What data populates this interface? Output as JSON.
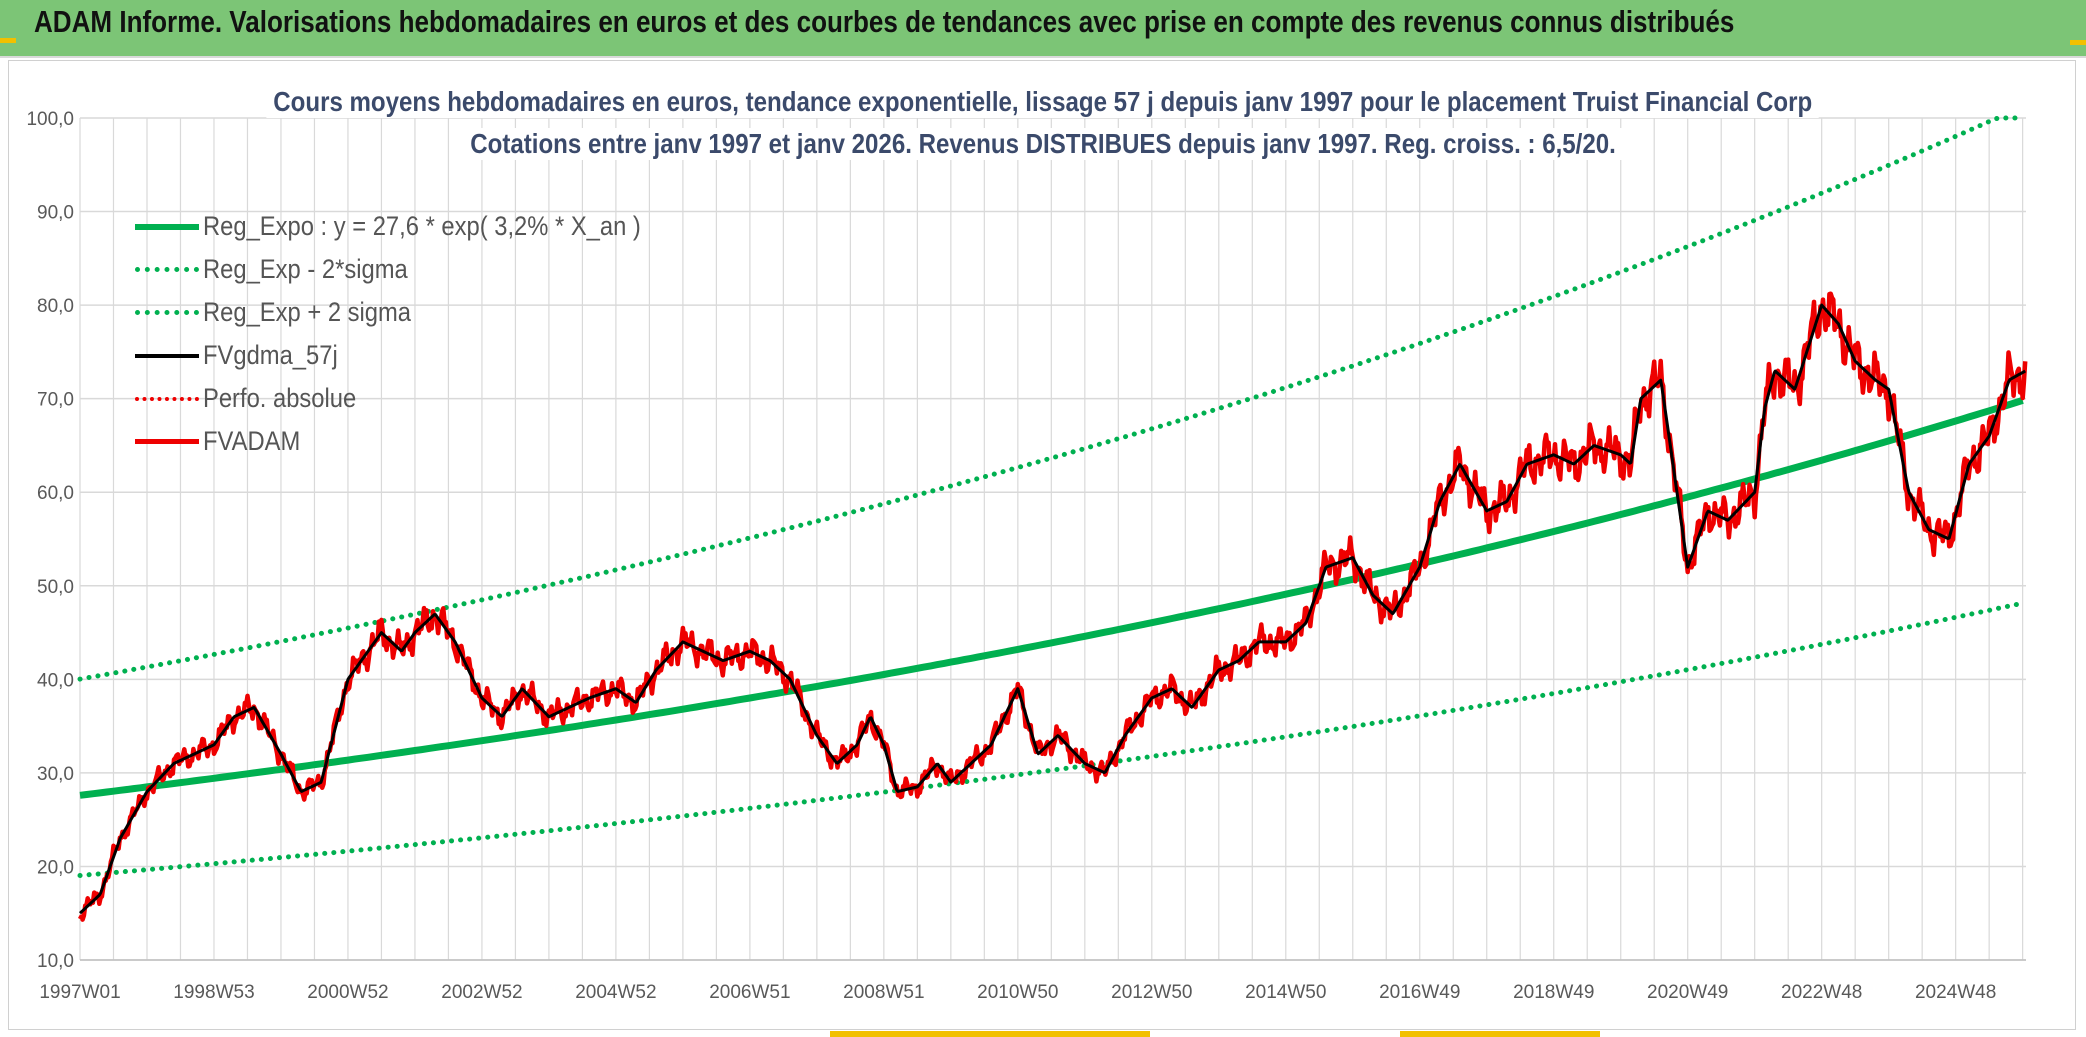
{
  "header": {
    "title": "ADAM Informe. Valorisations hebdomadaires en euros et des courbes de tendances avec prise en compte des revenus connus distribués"
  },
  "colors": {
    "banner": "#7cc576",
    "trend": "#00b050",
    "price": "#ee0000",
    "smooth": "#000000",
    "grid": "#d9d9d9",
    "axis_text": "#595959",
    "title_text": "#3b4a6b"
  },
  "chart_data": {
    "type": "line",
    "title": "Cours moyens hebdomadaires en euros, tendance exponentielle, lissage 57 j depuis janv 1997 pour le placement Truist Financial Corp",
    "subtitle": "Cotations entre janv 1997 et janv 2026. Revenus DISTRIBUES depuis janv 1997. Reg. croiss. : 6,5/20.",
    "xlabel": "",
    "ylabel": "",
    "x_range": [
      1997.0,
      2026.05
    ],
    "ylim": [
      10,
      100
    ],
    "y_ticks": [
      "10,0",
      "20,0",
      "30,0",
      "40,0",
      "50,0",
      "60,0",
      "70,0",
      "80,0",
      "90,0",
      "100,0"
    ],
    "x_tick_labels": [
      "1997W01",
      "1998W53",
      "2000W52",
      "2002W52",
      "2004W52",
      "2006W51",
      "2008W51",
      "2010W50",
      "2012W50",
      "2014W50",
      "2016W49",
      "2018W49",
      "2020W49",
      "2022W48",
      "2024W48"
    ],
    "x_tick_values": [
      1997.0,
      1999.0,
      2001.0,
      2003.0,
      2005.0,
      2007.0,
      2009.0,
      2011.0,
      2013.0,
      2015.0,
      2017.0,
      2019.0,
      2021.0,
      2023.0,
      2025.0
    ],
    "grid": true,
    "legend_position": "top-left",
    "regression": {
      "a": 27.6,
      "rate": 0.032,
      "sigma_factor": 1.45
    },
    "series": [
      {
        "name": "Reg_Expo : y = 27,6 * exp( 3,2% *  X_an )",
        "style": "solid-thick",
        "color": "#00b050"
      },
      {
        "name": "Reg_Exp - 2*sigma",
        "style": "dotted",
        "color": "#00b050"
      },
      {
        "name": "Reg_Exp + 2 sigma",
        "style": "dotted",
        "color": "#00b050"
      },
      {
        "name": "FVgdma_57j",
        "style": "solid",
        "color": "#000000"
      },
      {
        "name": "Perfo. absolue",
        "style": "dotted",
        "color": "#ee0000"
      },
      {
        "name": "FVADAM",
        "style": "solid",
        "color": "#ee0000",
        "x": [
          1997.0,
          1997.3,
          1997.6,
          1998.0,
          1998.4,
          1998.7,
          1999.0,
          1999.3,
          1999.6,
          2000.0,
          2000.3,
          2000.6,
          2001.0,
          2001.3,
          2001.5,
          2001.8,
          2002.0,
          2002.3,
          2002.6,
          2003.0,
          2003.3,
          2003.6,
          2004.0,
          2004.3,
          2004.6,
          2005.0,
          2005.3,
          2005.6,
          2006.0,
          2006.3,
          2006.6,
          2007.0,
          2007.3,
          2007.6,
          2008.0,
          2008.3,
          2008.6,
          2008.8,
          2009.0,
          2009.2,
          2009.5,
          2009.8,
          2010.0,
          2010.3,
          2010.6,
          2011.0,
          2011.3,
          2011.6,
          2012.0,
          2012.3,
          2012.6,
          2013.0,
          2013.3,
          2013.6,
          2014.0,
          2014.3,
          2014.6,
          2015.0,
          2015.3,
          2015.6,
          2016.0,
          2016.3,
          2016.6,
          2017.0,
          2017.3,
          2017.6,
          2018.0,
          2018.3,
          2018.6,
          2019.0,
          2019.3,
          2019.6,
          2020.0,
          2020.15,
          2020.3,
          2020.6,
          2021.0,
          2021.3,
          2021.6,
          2022.0,
          2022.15,
          2022.3,
          2022.6,
          2023.0,
          2023.25,
          2023.5,
          2023.8,
          2024.0,
          2024.3,
          2024.6,
          2024.9,
          2025.2,
          2025.5,
          2025.8,
          2026.05
        ],
        "y": [
          15.0,
          17.0,
          23.0,
          28.0,
          31.0,
          32.0,
          33.0,
          36.0,
          37.0,
          32.0,
          28.0,
          29.0,
          40.0,
          43.0,
          45.0,
          43.0,
          45.0,
          47.0,
          44.0,
          38.0,
          36.0,
          39.0,
          36.0,
          37.0,
          38.0,
          39.0,
          37.5,
          41.0,
          44.0,
          43.0,
          42.0,
          43.0,
          42.0,
          40.0,
          34.0,
          31.0,
          33.0,
          36.0,
          33.0,
          28.0,
          28.5,
          31.0,
          29.0,
          31.0,
          33.0,
          39.0,
          32.0,
          34.0,
          31.0,
          30.0,
          34.0,
          38.0,
          39.0,
          37.0,
          41.0,
          42.0,
          44.0,
          44.0,
          46.0,
          52.0,
          53.0,
          49.0,
          47.0,
          52.0,
          59.0,
          63.0,
          58.0,
          59.0,
          63.0,
          64.0,
          63.0,
          65.0,
          64.0,
          63.0,
          70.0,
          72.0,
          52.0,
          58.0,
          57.0,
          60.0,
          69.0,
          73.0,
          71.0,
          80.0,
          78.0,
          74.0,
          72.0,
          71.0,
          60.0,
          56.0,
          55.0,
          63.0,
          66.0,
          72.0,
          73.0
        ]
      }
    ]
  }
}
